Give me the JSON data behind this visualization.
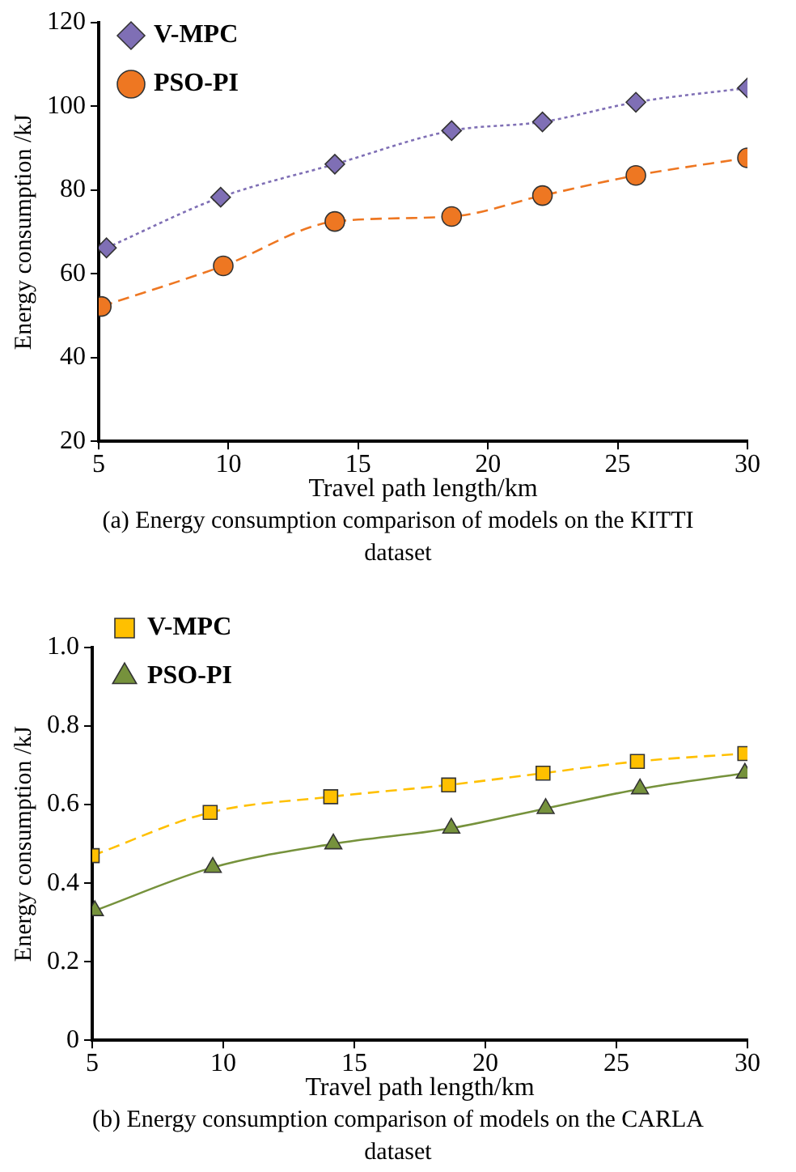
{
  "chart_data": [
    {
      "type": "line",
      "xlabel": "Travel path length/km",
      "ylabel": "Energy consumption /kJ",
      "annotations": [
        "(a) Energy consumption comparison of models on the KITTI dataset"
      ],
      "xlim": [
        5,
        30
      ],
      "xticks": [
        5,
        10,
        15,
        20,
        25,
        30
      ],
      "ylim": [
        20,
        120
      ],
      "yticks": [
        20,
        40,
        60,
        80,
        100,
        120
      ],
      "grid": false,
      "legend": "top left",
      "series": [
        {
          "name": "V-MPC",
          "color": "#7f6fb5",
          "marker": "diamond",
          "line_style": "dotted",
          "x": [
            5.3,
            9.7,
            14.1,
            18.6,
            22.1,
            25.7,
            30
          ],
          "values": [
            66.2,
            78.3,
            86.2,
            94.2,
            96.3,
            101,
            104.4
          ]
        },
        {
          "name": "PSO-PI",
          "color": "#ee7722",
          "marker": "circle",
          "line_style": "dashed",
          "x": [
            5.1,
            9.8,
            14.1,
            18.6,
            22.1,
            25.7,
            30
          ],
          "values": [
            52.2,
            61.9,
            72.5,
            73.7,
            78.7,
            83.5,
            87.7
          ]
        }
      ]
    },
    {
      "type": "line",
      "xlabel": "Travel path length/km",
      "ylabel": "Energy consumption /kJ",
      "annotations": [
        "(b) Energy consumption comparison of models on the CARLA dataset"
      ],
      "xlim": [
        5,
        30
      ],
      "xticks": [
        5,
        10,
        15,
        20,
        25,
        30
      ],
      "ylim": [
        0,
        1.0
      ],
      "yticks": [
        0,
        0.2,
        0.4,
        0.6,
        0.8,
        {
          "value": 1.0,
          "label": "1.0"
        }
      ],
      "grid": false,
      "legend": "top left",
      "series": [
        {
          "name": "V-MPC",
          "color": "#ffc000",
          "marker": "square",
          "line_style": "dashed",
          "x": [
            5.0,
            9.5,
            14.1,
            18.6,
            22.2,
            25.8,
            29.9
          ],
          "values": [
            0.47,
            0.58,
            0.62,
            0.65,
            0.68,
            0.71,
            0.73
          ]
        },
        {
          "name": "PSO-PI",
          "color": "#76923c",
          "marker": "triangle",
          "line_style": "solid",
          "x": [
            5.1,
            9.6,
            14.2,
            18.7,
            22.3,
            25.9,
            29.9
          ],
          "values": [
            0.33,
            0.44,
            0.5,
            0.54,
            0.59,
            0.64,
            0.68
          ]
        }
      ]
    }
  ]
}
